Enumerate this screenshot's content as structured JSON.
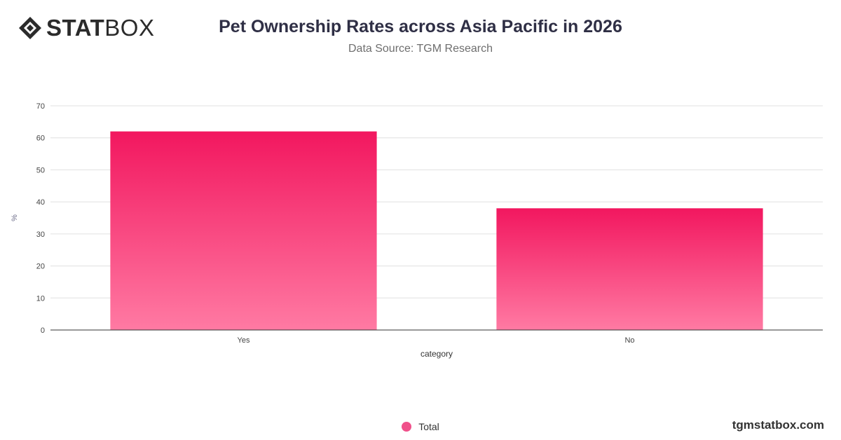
{
  "brand": {
    "logo_bold": "STAT",
    "logo_light": "BOX",
    "footer": "tgmstatbox.com"
  },
  "colors": {
    "bar_top": "#f2175f",
    "bar_bottom": "#ff7aa3",
    "legend": "#f0508a"
  },
  "chart_data": {
    "type": "bar",
    "title": "Pet Ownership Rates across Asia Pacific in 2026",
    "subtitle": "Data Source: TGM Research",
    "categories": [
      "Yes",
      "No"
    ],
    "series": [
      {
        "name": "Total",
        "values": [
          62,
          38
        ]
      }
    ],
    "xlabel": "category",
    "ylabel": "%",
    "ylim": [
      0,
      70
    ],
    "yticks": [
      0,
      10,
      20,
      30,
      40,
      50,
      60,
      70
    ],
    "grid": true,
    "legend": "bottom-center"
  }
}
